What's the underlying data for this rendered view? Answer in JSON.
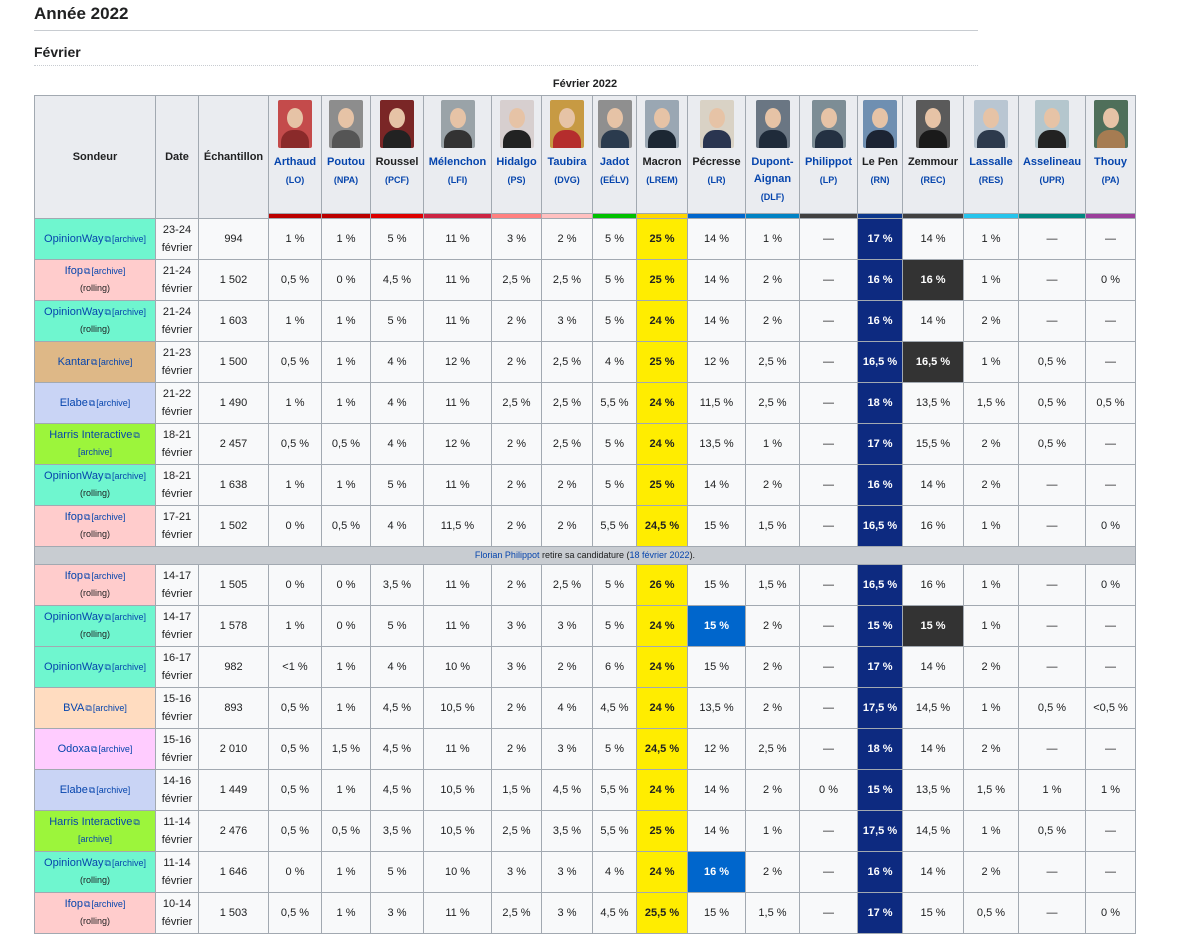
{
  "page": {
    "title": "Année 2022",
    "subtitle": "Février"
  },
  "table": {
    "caption": "Février 2022",
    "headers": {
      "sondeur": "Sondeur",
      "date": "Date",
      "echantillon": "Échantillon"
    },
    "candidates": [
      {
        "name": "Arthaud",
        "party": "(LO)",
        "color": "#bb0000",
        "photo_bg": "#c44b4b",
        "body": "#8a2a2a",
        "link": true
      },
      {
        "name": "Poutou",
        "party": "(NPA)",
        "color": "#bb0000",
        "photo_bg": "#8d8d8d",
        "body": "#555",
        "link": true
      },
      {
        "name": "Roussel",
        "party": "(PCF)",
        "color": "#dd0000",
        "photo_bg": "#7a2626",
        "body": "#222",
        "link": false
      },
      {
        "name": "Mélenchon",
        "party": "(LFI)",
        "color": "#cc2443",
        "photo_bg": "#9aa3a8",
        "body": "#333",
        "link": true
      },
      {
        "name": "Hidalgo",
        "party": "(PS)",
        "color": "#ff8080",
        "photo_bg": "#d7cfcf",
        "body": "#222",
        "link": true
      },
      {
        "name": "Taubira",
        "party": "(DVG)",
        "color": "#ffc0c0",
        "photo_bg": "#c79a43",
        "body": "#b52d2d",
        "link": true
      },
      {
        "name": "Jadot",
        "party": "(EÉLV)",
        "color": "#00c000",
        "photo_bg": "#8f8f8f",
        "body": "#2b3b4e",
        "link": true
      },
      {
        "name": "Macron",
        "party": "(LREM)",
        "color": "#ffd600",
        "photo_bg": "#9aa7b3",
        "body": "#1c2733",
        "link": false
      },
      {
        "name": "Pécresse",
        "party": "(LR)",
        "color": "#0066cc",
        "photo_bg": "#d9d2c5",
        "body": "#2a3550",
        "link": false
      },
      {
        "name": "Dupont-Aignan",
        "party": "(DLF)",
        "color": "#0082c4",
        "photo_bg": "#6a7683",
        "body": "#1f2b3a",
        "link": true
      },
      {
        "name": "Philippot",
        "party": "(LP)",
        "color": "#404040",
        "photo_bg": "#7d8d95",
        "body": "#243142",
        "link": true
      },
      {
        "name": "Le Pen",
        "party": "(RN)",
        "color": "#0d378a",
        "photo_bg": "#6f8fb1",
        "body": "#1c2433",
        "link": false
      },
      {
        "name": "Zemmour",
        "party": "(REC)",
        "color": "#404040",
        "photo_bg": "#5a5a5a",
        "body": "#1a1a1a",
        "link": false
      },
      {
        "name": "Lassalle",
        "party": "(RES)",
        "color": "#26c4ec",
        "photo_bg": "#b9c6d2",
        "body": "#2d3a4c",
        "link": true
      },
      {
        "name": "Asselineau",
        "party": "(UPR)",
        "color": "#00867f",
        "photo_bg": "#b4c6cd",
        "body": "#222",
        "link": true
      },
      {
        "name": "Thouy",
        "party": "(PA)",
        "color": "#9b3f9b",
        "photo_bg": "#4f6f5a",
        "body": "#a67c52",
        "link": true
      }
    ],
    "rows": [
      {
        "pollster": "OpinionWay",
        "rolling": false,
        "bg": "#6ff6cf",
        "date1": "23-24",
        "date2": "février",
        "sample": "994",
        "values": [
          "1 %",
          "1 %",
          "5 %",
          "11 %",
          "3 %",
          "2 %",
          "5 %",
          "25 %",
          "14 %",
          "1 %",
          "—",
          "17 %",
          "14 %",
          "1 %",
          "—",
          "—"
        ],
        "hl": {}
      },
      {
        "pollster": "Ifop",
        "rolling": true,
        "bg": "#ffcccc",
        "date1": "21-24",
        "date2": "février",
        "sample": "1 502",
        "values": [
          "0,5 %",
          "0 %",
          "4,5 %",
          "11 %",
          "2,5 %",
          "2,5 %",
          "5 %",
          "25 %",
          "14 %",
          "2 %",
          "—",
          "16 %",
          "16 %",
          "1 %",
          "—",
          "0 %"
        ],
        "hl": {
          "12": "zhl"
        }
      },
      {
        "pollster": "OpinionWay",
        "rolling": true,
        "bg": "#6ff6cf",
        "date1": "21-24",
        "date2": "février",
        "sample": "1 603",
        "values": [
          "1 %",
          "1 %",
          "5 %",
          "11 %",
          "2 %",
          "3 %",
          "5 %",
          "24 %",
          "14 %",
          "2 %",
          "—",
          "16 %",
          "14 %",
          "2 %",
          "—",
          "—"
        ],
        "hl": {}
      },
      {
        "pollster": "Kantar",
        "rolling": false,
        "bg": "#deb887",
        "date1": "21-23",
        "date2": "février",
        "sample": "1 500",
        "values": [
          "0,5 %",
          "1 %",
          "4 %",
          "12 %",
          "2 %",
          "2,5 %",
          "4 %",
          "25 %",
          "12 %",
          "2,5 %",
          "—",
          "16,5 %",
          "16,5 %",
          "1 %",
          "0,5 %",
          "—"
        ],
        "hl": {
          "12": "zhl"
        }
      },
      {
        "pollster": "Elabe",
        "rolling": false,
        "bg": "#c9d4f5",
        "date1": "21-22",
        "date2": "février",
        "sample": "1 490",
        "values": [
          "1 %",
          "1 %",
          "4 %",
          "11 %",
          "2,5 %",
          "2,5 %",
          "5,5 %",
          "24 %",
          "11,5 %",
          "2,5 %",
          "—",
          "18 %",
          "13,5 %",
          "1,5 %",
          "0,5 %",
          "0,5 %"
        ],
        "hl": {}
      },
      {
        "pollster": "Harris Interactive",
        "rolling": false,
        "bg": "#9cf53b",
        "date1": "18-21",
        "date2": "février",
        "sample": "2 457",
        "values": [
          "0,5 %",
          "0,5 %",
          "4 %",
          "12 %",
          "2 %",
          "2,5 %",
          "5 %",
          "24 %",
          "13,5 %",
          "1 %",
          "—",
          "17 %",
          "15,5 %",
          "2 %",
          "0,5 %",
          "—"
        ],
        "hl": {}
      },
      {
        "pollster": "OpinionWay",
        "rolling": true,
        "bg": "#6ff6cf",
        "date1": "18-21",
        "date2": "février",
        "sample": "1 638",
        "values": [
          "1 %",
          "1 %",
          "5 %",
          "11 %",
          "2 %",
          "2 %",
          "5 %",
          "25 %",
          "14 %",
          "2 %",
          "—",
          "16 %",
          "14 %",
          "2 %",
          "—",
          "—"
        ],
        "hl": {}
      },
      {
        "pollster": "Ifop",
        "rolling": true,
        "bg": "#ffcccc",
        "date1": "17-21",
        "date2": "février",
        "sample": "1 502",
        "values": [
          "0 %",
          "0,5 %",
          "4 %",
          "11,5 %",
          "2 %",
          "2 %",
          "5,5 %",
          "24,5 %",
          "15 %",
          "1,5 %",
          "—",
          "16,5 %",
          "16 %",
          "1 %",
          "—",
          "0 %"
        ],
        "hl": {}
      },
      {
        "notice": true,
        "notice_link": "Florian Philippot",
        "notice_text": " retire sa candidature (",
        "notice_date": "18 février 2022",
        "notice_end": ")."
      },
      {
        "pollster": "Ifop",
        "rolling": true,
        "bg": "#ffcccc",
        "date1": "14-17",
        "date2": "février",
        "sample": "1 505",
        "values": [
          "0 %",
          "0 %",
          "3,5 %",
          "11 %",
          "2 %",
          "2,5 %",
          "5 %",
          "26 %",
          "15 %",
          "1,5 %",
          "—",
          "16,5 %",
          "16 %",
          "1 %",
          "—",
          "0 %"
        ],
        "hl": {}
      },
      {
        "pollster": "OpinionWay",
        "rolling": true,
        "bg": "#6ff6cf",
        "date1": "14-17",
        "date2": "février",
        "sample": "1 578",
        "values": [
          "1 %",
          "0 %",
          "5 %",
          "11 %",
          "3 %",
          "3 %",
          "5 %",
          "24 %",
          "15 %",
          "2 %",
          "—",
          "15 %",
          "15 %",
          "1 %",
          "—",
          "—"
        ],
        "hl": {
          "8": "phl",
          "12": "zhl"
        }
      },
      {
        "pollster": "OpinionWay",
        "rolling": false,
        "bg": "#6ff6cf",
        "date1": "16-17",
        "date2": "février",
        "sample": "982",
        "values": [
          "<1 %",
          "1 %",
          "4 %",
          "10 %",
          "3 %",
          "2 %",
          "6 %",
          "24 %",
          "15 %",
          "2 %",
          "—",
          "17 %",
          "14 %",
          "2 %",
          "—",
          "—"
        ],
        "hl": {}
      },
      {
        "pollster": "BVA",
        "rolling": false,
        "bg": "#ffdcc0",
        "date1": "15-16",
        "date2": "février",
        "sample": "893",
        "values": [
          "0,5 %",
          "1 %",
          "4,5 %",
          "10,5 %",
          "2 %",
          "4 %",
          "4,5 %",
          "24 %",
          "13,5 %",
          "2 %",
          "—",
          "17,5 %",
          "14,5 %",
          "1 %",
          "0,5 %",
          "<0,5 %"
        ],
        "hl": {}
      },
      {
        "pollster": "Odoxa",
        "rolling": false,
        "bg": "#ffccff",
        "date1": "15-16",
        "date2": "février",
        "sample": "2 010",
        "values": [
          "0,5 %",
          "1,5 %",
          "4,5 %",
          "11 %",
          "2 %",
          "3 %",
          "5 %",
          "24,5 %",
          "12 %",
          "2,5 %",
          "—",
          "18 %",
          "14 %",
          "2 %",
          "—",
          "—"
        ],
        "hl": {}
      },
      {
        "pollster": "Elabe",
        "rolling": false,
        "bg": "#c9d4f5",
        "date1": "14-16",
        "date2": "février",
        "sample": "1 449",
        "values": [
          "0,5 %",
          "1 %",
          "4,5 %",
          "10,5 %",
          "1,5 %",
          "4,5 %",
          "5,5 %",
          "24 %",
          "14 %",
          "2 %",
          "0 %",
          "15 %",
          "13,5 %",
          "1,5 %",
          "1 %",
          "1 %"
        ],
        "hl": {}
      },
      {
        "pollster": "Harris Interactive",
        "rolling": false,
        "bg": "#9cf53b",
        "date1": "11-14",
        "date2": "février",
        "sample": "2 476",
        "values": [
          "0,5 %",
          "0,5 %",
          "3,5 %",
          "10,5 %",
          "2,5 %",
          "3,5 %",
          "5,5 %",
          "25 %",
          "14 %",
          "1 %",
          "—",
          "17,5 %",
          "14,5 %",
          "1 %",
          "0,5 %",
          "—"
        ],
        "hl": {}
      },
      {
        "pollster": "OpinionWay",
        "rolling": true,
        "bg": "#6ff6cf",
        "date1": "11-14",
        "date2": "février",
        "sample": "1 646",
        "values": [
          "0 %",
          "1 %",
          "5 %",
          "10 %",
          "3 %",
          "3 %",
          "4 %",
          "24 %",
          "16 %",
          "2 %",
          "—",
          "16 %",
          "14 %",
          "2 %",
          "—",
          "—"
        ],
        "hl": {
          "8": "phl"
        }
      },
      {
        "pollster": "Ifop",
        "rolling": true,
        "bg": "#ffcccc",
        "date1": "10-14",
        "date2": "février",
        "sample": "1 503",
        "values": [
          "0,5 %",
          "1 %",
          "3 %",
          "11 %",
          "2,5 %",
          "3 %",
          "4,5 %",
          "25,5 %",
          "15 %",
          "1,5 %",
          "—",
          "17 %",
          "15 %",
          "0,5 %",
          "—",
          "0 %"
        ],
        "hl": {}
      }
    ]
  },
  "labels": {
    "archive": "[archive]",
    "rolling": "(rolling)"
  }
}
